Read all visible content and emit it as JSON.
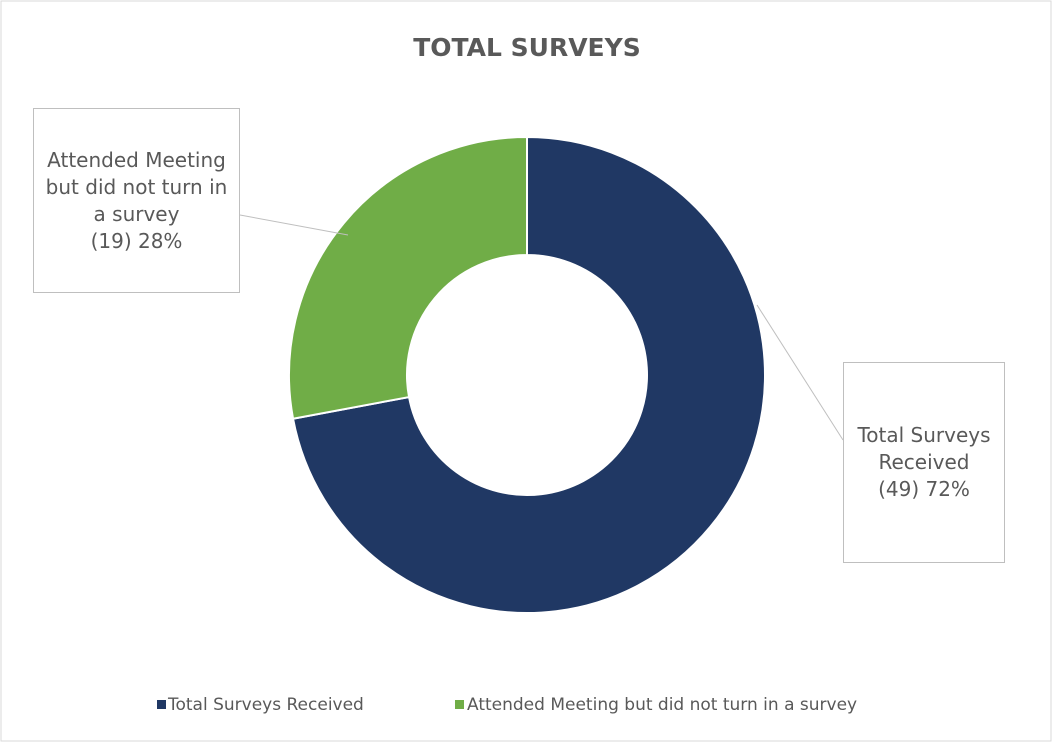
{
  "chart_data": {
    "type": "donut",
    "title": "TOTAL SURVEYS",
    "categories": [
      "Total Surveys Received",
      "Attended Meeting but did not turn in a survey"
    ],
    "values": [
      49,
      19
    ],
    "value_labels": [
      "(49) 72%",
      "(19) 28%"
    ],
    "colors": [
      "#203864",
      "#70ad47"
    ],
    "legend": "bottom"
  }
}
